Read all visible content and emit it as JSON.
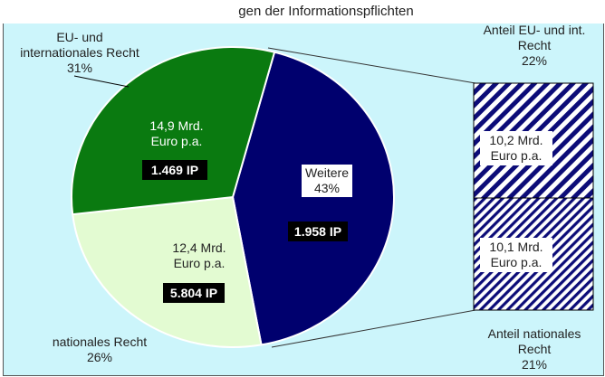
{
  "header": {
    "partial_title": "gen der Informationspflichten"
  },
  "chart_data": {
    "type": "pie",
    "title": "",
    "slices": [
      {
        "name": "Weitere",
        "percent": 43,
        "ip": "1.958 IP",
        "color": "#00006e"
      },
      {
        "name": "nationales Recht",
        "percent": 26,
        "cost_line1": "12,4 Mrd.",
        "cost_line2": "Euro p.a.",
        "ip": "5.804 IP",
        "color": "#e3fbd2"
      },
      {
        "name_line1": "EU- und",
        "name_line2": "internationales Recht",
        "percent": 31,
        "cost_line1": "14,9 Mrd.",
        "cost_line2": "Euro p.a.",
        "ip": "1.469 IP",
        "color": "#0a7a10"
      }
    ],
    "percent_labels": {
      "weitere": "43%",
      "national": "26%",
      "eu": "31%"
    },
    "breakdown": {
      "segments": [
        {
          "title_line1": "Anteil EU- und int.",
          "title_line2": "Recht",
          "percent": 22,
          "percent_label": "22%",
          "value_line1": "10,2 Mrd.",
          "value_line2": "Euro p.a."
        },
        {
          "title_line1": "Anteil nationales",
          "title_line2": "Recht",
          "percent": 21,
          "percent_label": "21%",
          "value_line1": "10,1 Mrd.",
          "value_line2": "Euro p.a."
        }
      ]
    }
  }
}
